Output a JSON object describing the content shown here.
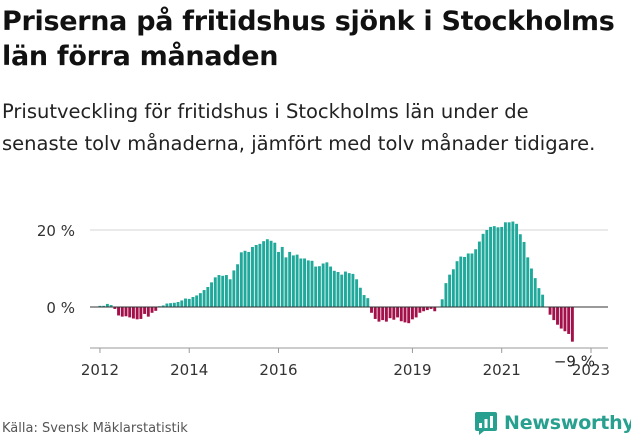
{
  "title": "Priserna på fritidshus sjönk i Stockholms län förra månaden",
  "subtitle": "Prisutveckling för fritidshus i Stockholms län under de senaste tolv månaderna, jämfört med tolv månader tidigare.",
  "source": "Källa: Svensk Mäklarstatistik",
  "brand": "Newsworthy",
  "colors": {
    "positive": "#20a89b",
    "negative": "#a3104a",
    "grid": "#d5d5d5",
    "zero_line": "#333333",
    "brand": "#28a08f"
  },
  "chart_data": {
    "type": "bar",
    "title": "Prisutveckling för fritidshus i Stockholms län",
    "xlabel": "",
    "ylabel": "",
    "ylim": [
      -10,
      22
    ],
    "yticks": [
      0,
      20
    ],
    "ytick_labels": [
      "0 %",
      "20 %"
    ],
    "start": "2012-01",
    "xticks": [
      "2012",
      "2014",
      "2016",
      "2019",
      "2021",
      "2023"
    ],
    "annotation": "−9 %",
    "values": [
      0.3,
      0.3,
      0.8,
      0.5,
      -0.5,
      -2.2,
      -2.5,
      -2.4,
      -2.7,
      -3.0,
      -3.2,
      -3.1,
      -1.8,
      -2.5,
      -1.5,
      -1.0,
      0.2,
      0.4,
      0.9,
      1.0,
      1.1,
      1.3,
      1.7,
      2.2,
      2.1,
      2.6,
      3.0,
      3.6,
      4.4,
      5.2,
      6.4,
      7.7,
      8.3,
      8.1,
      8.3,
      7.2,
      9.5,
      11.1,
      14.2,
      14.6,
      14.3,
      15.6,
      16.1,
      16.4,
      17.1,
      17.6,
      17.2,
      16.7,
      14.3,
      15.6,
      12.9,
      14.3,
      13.4,
      13.6,
      12.6,
      12.6,
      12.1,
      12.0,
      10.5,
      10.6,
      11.3,
      11.6,
      10.5,
      9.4,
      9.1,
      8.4,
      9.2,
      8.8,
      8.6,
      7.2,
      5.0,
      3.1,
      2.3,
      -1.5,
      -3.1,
      -3.8,
      -3.4,
      -3.8,
      -2.9,
      -3.3,
      -2.7,
      -3.7,
      -4.0,
      -4.2,
      -3.2,
      -2.7,
      -1.5,
      -1.1,
      -0.8,
      -0.5,
      -1.1,
      0.1,
      2.0,
      6.2,
      8.4,
      9.8,
      11.9,
      13.1,
      13.0,
      13.9,
      13.9,
      15.0,
      17.0,
      19.0,
      20.0,
      20.8,
      21.0,
      20.7,
      20.8,
      22.0,
      22.0,
      22.2,
      21.6,
      18.9,
      16.9,
      12.9,
      10.0,
      7.5,
      4.9,
      3.2,
      0.1,
      -2.0,
      -3.4,
      -4.6,
      -5.6,
      -6.3,
      -7.0,
      -9.0
    ]
  }
}
